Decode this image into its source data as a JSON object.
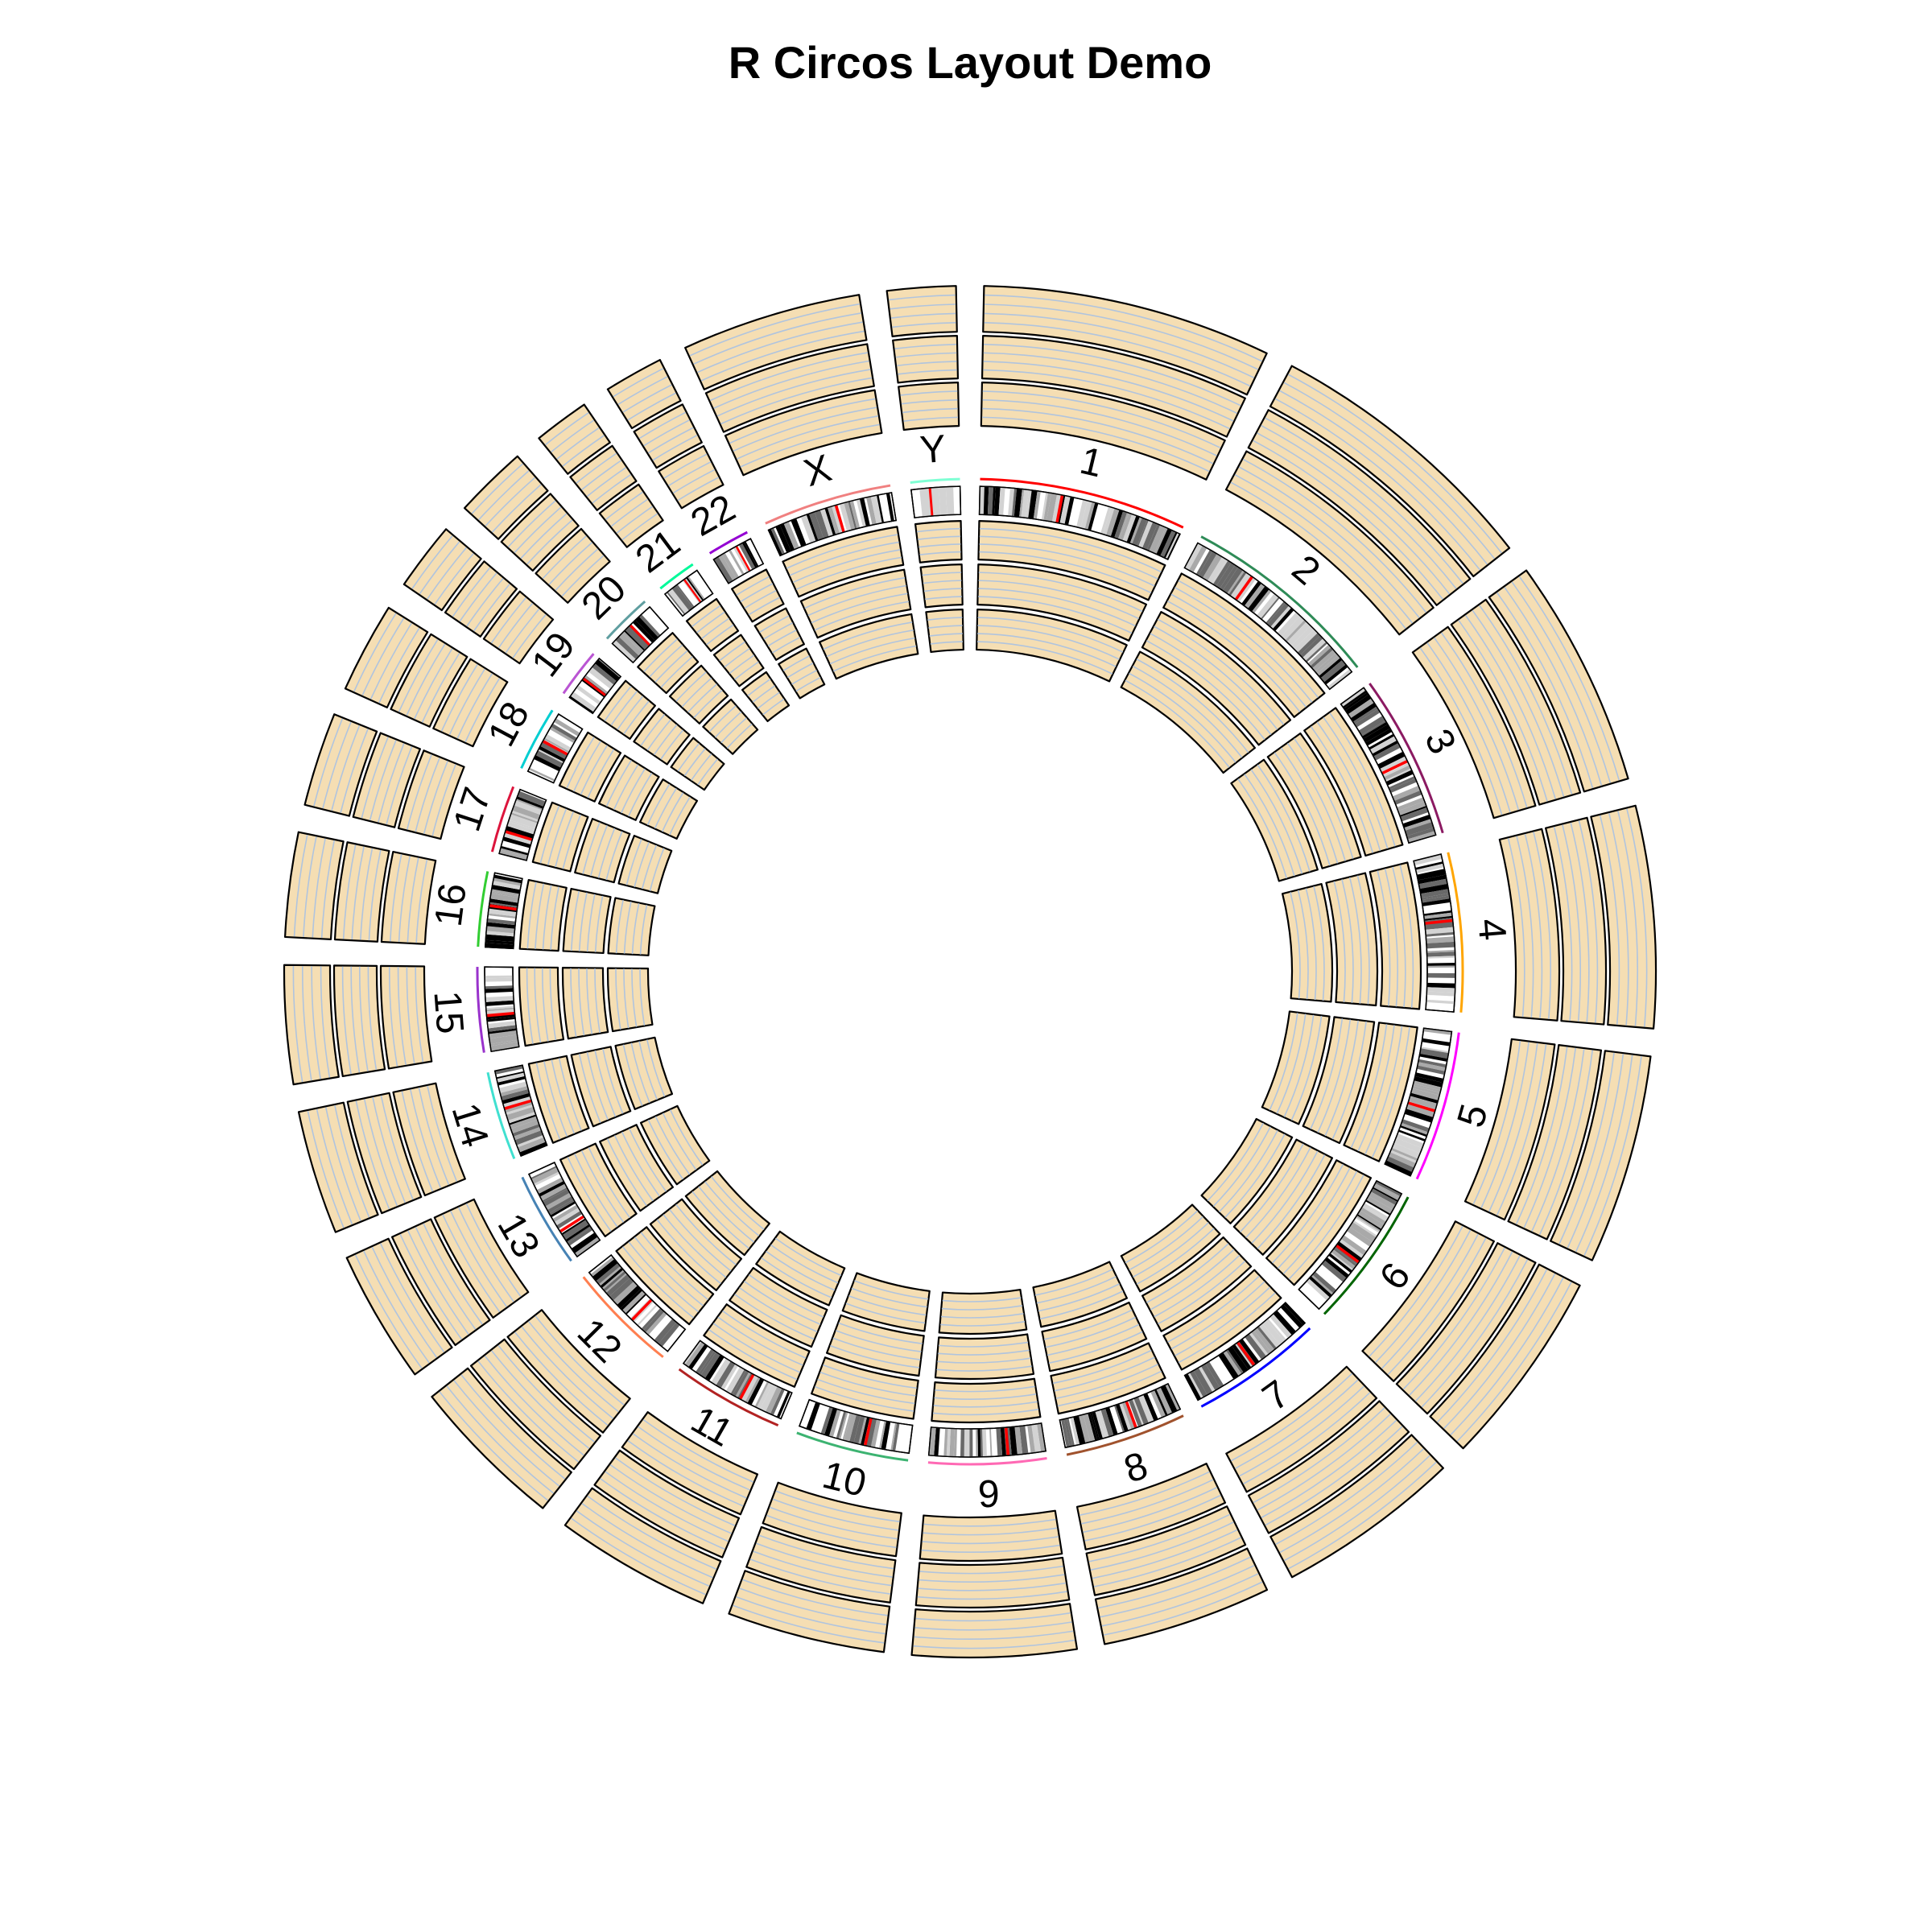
{
  "chart_data": {
    "type": "circos",
    "title": "R Circos Layout Demo",
    "chromosomes": [
      {
        "name": "1",
        "length": 249,
        "color": "#ff0000"
      },
      {
        "name": "2",
        "length": 243,
        "color": "#2e8b57"
      },
      {
        "name": "3",
        "length": 198,
        "color": "#8b1a62"
      },
      {
        "name": "4",
        "length": 191,
        "color": "#ffa500"
      },
      {
        "name": "5",
        "length": 181,
        "color": "#ff00ff"
      },
      {
        "name": "6",
        "length": 171,
        "color": "#006400"
      },
      {
        "name": "7",
        "length": 159,
        "color": "#0000ff"
      },
      {
        "name": "8",
        "length": 146,
        "color": "#a0522d"
      },
      {
        "name": "9",
        "length": 141,
        "color": "#ff69b4"
      },
      {
        "name": "10",
        "length": 136,
        "color": "#3cb371"
      },
      {
        "name": "11",
        "length": 135,
        "color": "#b22222"
      },
      {
        "name": "12",
        "length": 134,
        "color": "#ff7f50"
      },
      {
        "name": "13",
        "length": 115,
        "color": "#4682b4"
      },
      {
        "name": "14",
        "length": 107,
        "color": "#40e0d0"
      },
      {
        "name": "15",
        "length": 102,
        "color": "#9932cc"
      },
      {
        "name": "16",
        "length": 90,
        "color": "#32cd32"
      },
      {
        "name": "17",
        "length": 81,
        "color": "#dc143c"
      },
      {
        "name": "18",
        "length": 78,
        "color": "#00ced1"
      },
      {
        "name": "19",
        "length": 59,
        "color": "#ba55d3"
      },
      {
        "name": "20",
        "length": 63,
        "color": "#5f9ea0"
      },
      {
        "name": "21",
        "length": 48,
        "color": "#00fa9a"
      },
      {
        "name": "22",
        "length": 51,
        "color": "#9400d3"
      },
      {
        "name": "X",
        "length": 155,
        "color": "#f08080"
      },
      {
        "name": "Y",
        "length": 59,
        "color": "#7fffd4"
      }
    ],
    "track_fill_color": "#f5deb3",
    "track_grid_color": "#b0c4de",
    "track_border_color": "#000000",
    "band_colors": [
      "#ffffff",
      "#d3d3d3",
      "#a9a9a9",
      "#696969",
      "#000000"
    ],
    "centromere_color": "#ff0000",
    "stalk_color": "#4682b4",
    "outer_track_count": 3,
    "inner_track_count": 3,
    "grid_lines_per_track": 4
  }
}
